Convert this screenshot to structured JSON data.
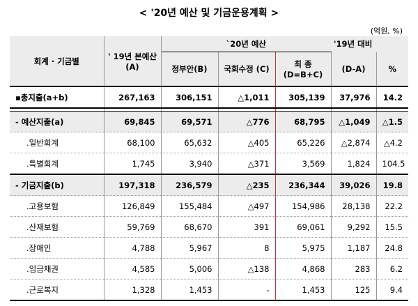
{
  "title": "< '20년 예산 및 기금운용계획 >",
  "unit": "(억원, %)",
  "headers": {
    "category": "회계 · 기금별",
    "budget2019": "' 19년 본예산(A)",
    "budget2020": "`20년 예산",
    "gov": "정부안(B)",
    "assembly": "국회수정 (C)",
    "final": "최 종 (D=B+C)",
    "vs2019": "'19년 대비",
    "diff": "(D-A)",
    "pct": "%"
  },
  "rows": [
    {
      "label": "▪총지출(a+b)",
      "v2019": "267,163",
      "gov": "306,151",
      "assembly": "△1,011",
      "final": "305,139",
      "diff": "37,976",
      "pct": "14.2"
    },
    {
      "label": "- 예산지출(a)",
      "v2019": "69,845",
      "gov": "69,571",
      "assembly": "△776",
      "final": "68,795",
      "diff": "△1,049",
      "pct": "△1.5"
    },
    {
      "label": ".일반회계",
      "v2019": "68,100",
      "gov": "65,632",
      "assembly": "△405",
      "final": "65,226",
      "diff": "△2,874",
      "pct": "△4.2"
    },
    {
      "label": ".특별회계",
      "v2019": "1,745",
      "gov": "3,940",
      "assembly": "△371",
      "final": "3,569",
      "diff": "1,824",
      "pct": "104.5"
    },
    {
      "label": "- 기금지출(b)",
      "v2019": "197,318",
      "gov": "236,579",
      "assembly": "△235",
      "final": "236,344",
      "diff": "39,026",
      "pct": "19.8"
    },
    {
      "label": ".고용보험",
      "v2019": "126,849",
      "gov": "155,484",
      "assembly": "△497",
      "final": "154,986",
      "diff": "28,138",
      "pct": "22.2"
    },
    {
      "label": ".산재보험",
      "v2019": "59,769",
      "gov": "68,670",
      "assembly": "391",
      "final": "69,061",
      "diff": "9,292",
      "pct": "15.5"
    },
    {
      "label": ".장애인",
      "v2019": "4,788",
      "gov": "5,967",
      "assembly": "8",
      "final": "5,975",
      "diff": "1,187",
      "pct": "24.8"
    },
    {
      "label": ".임금채권",
      "v2019": "4,585",
      "gov": "5,006",
      "assembly": "△138",
      "final": "4,868",
      "diff": "283",
      "pct": "6.2"
    },
    {
      "label": ".근로복지",
      "v2019": "1,328",
      "gov": "1,453",
      "assembly": "-",
      "final": "1,453",
      "diff": "125",
      "pct": "9.4"
    }
  ],
  "colors": {
    "header_bg": "#ececec",
    "accent_line": "#d23030"
  }
}
